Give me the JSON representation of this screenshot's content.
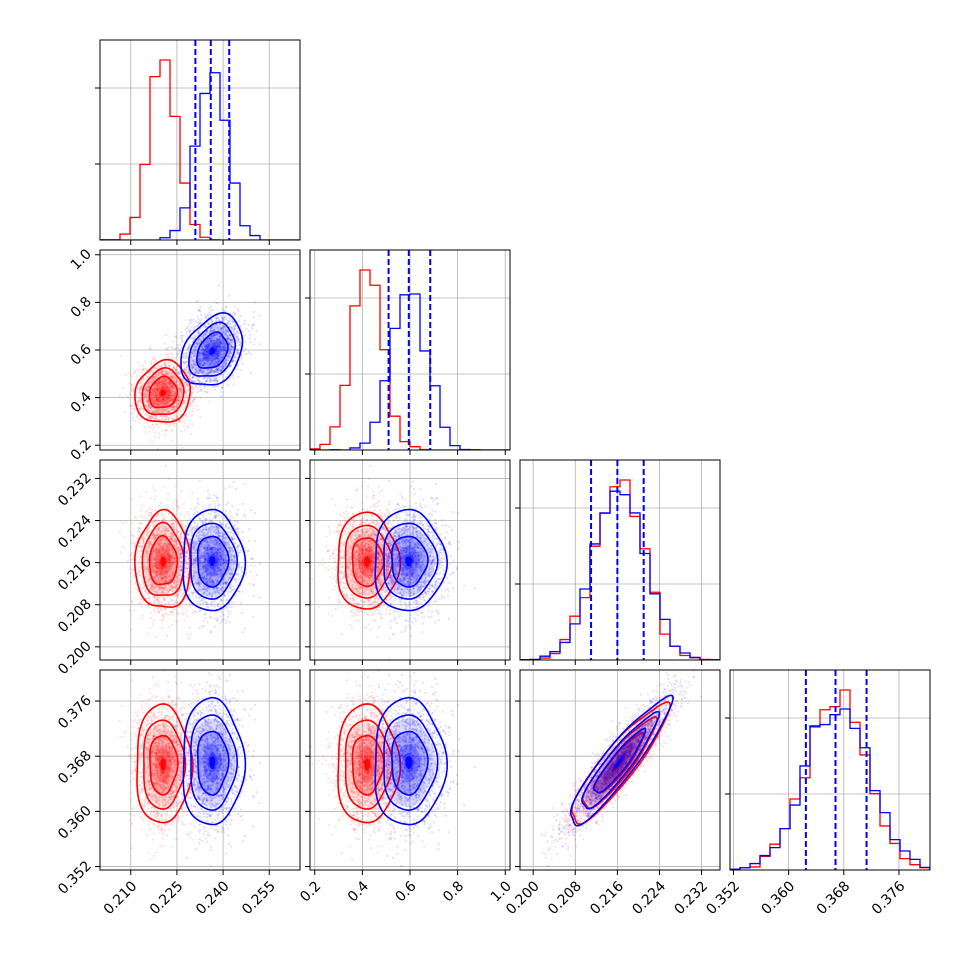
{
  "colors": {
    "series_a": "#ff0000",
    "series_b": "#0000ff",
    "grid": "#b0b0b0"
  },
  "chart_data": {
    "type": "corner",
    "grid": true,
    "parameters": [
      {
        "range": [
          0.2,
          0.265
        ],
        "ticks": [
          0.21,
          0.225,
          0.24,
          0.255
        ],
        "tick_labels": [
          "0.210",
          "0.225",
          "0.240",
          "0.255"
        ]
      },
      {
        "range": [
          0.18,
          1.02
        ],
        "ticks": [
          0.2,
          0.4,
          0.6,
          0.8,
          1.0
        ],
        "tick_labels": [
          "0.2",
          "0.4",
          "0.6",
          "0.8",
          "1.0"
        ]
      },
      {
        "range": [
          0.1975,
          0.2355
        ],
        "ticks": [
          0.2,
          0.208,
          0.216,
          0.224,
          0.232
        ],
        "tick_labels": [
          "0.200",
          "0.208",
          "0.216",
          "0.224",
          "0.232"
        ]
      },
      {
        "range": [
          0.3515,
          0.3805
        ],
        "ticks": [
          0.352,
          0.36,
          0.368,
          0.376
        ],
        "tick_labels": [
          "0.352",
          "0.360",
          "0.368",
          "0.376"
        ]
      }
    ],
    "series": [
      {
        "color": "#ff0000",
        "mean": [
          0.2205,
          0.42,
          0.2162,
          0.3668
        ],
        "std": [
          0.0045,
          0.065,
          0.0046,
          0.0043
        ],
        "corr": [
          [
            1,
            0.1,
            0,
            0
          ],
          [
            0.1,
            1,
            0,
            0
          ],
          [
            0,
            0,
            1,
            0.9
          ],
          [
            0,
            0,
            0.9,
            1
          ]
        ]
      },
      {
        "color": "#0000ff",
        "mean": [
          0.2365,
          0.595,
          0.2163,
          0.3671
        ],
        "std": [
          0.005,
          0.075,
          0.0048,
          0.0046
        ],
        "corr": [
          [
            1,
            0.3,
            0,
            0
          ],
          [
            0.3,
            1,
            0,
            0
          ],
          [
            0,
            0,
            1,
            0.92
          ],
          [
            0,
            0,
            0.92,
            1
          ]
        ]
      }
    ],
    "quantile_lines": {
      "color": "#0000ff",
      "values": [
        [
          0.231,
          0.236,
          0.242
        ],
        [
          0.51,
          0.595,
          0.685
        ],
        [
          0.211,
          0.216,
          0.221
        ],
        [
          0.3625,
          0.3668,
          0.3713
        ]
      ]
    }
  }
}
